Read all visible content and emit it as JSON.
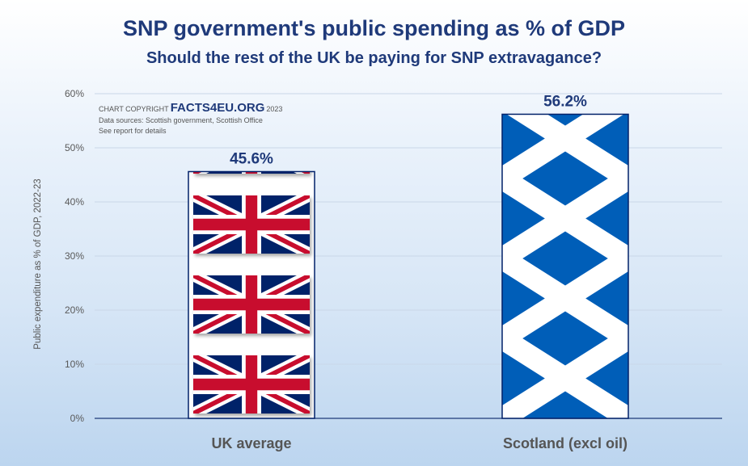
{
  "header": {
    "title": "SNP government's public spending as % of GDP",
    "subtitle": "Should the rest of the UK be paying for SNP extravagance?"
  },
  "credit": {
    "prefix": "CHART COPYRIGHT",
    "brand": "FACTS4EU.ORG",
    "year": "2023",
    "sources": "Data sources: Scottish government, Scottish Office",
    "note": "See report for details"
  },
  "chart_data": {
    "type": "bar",
    "categories": [
      "UK average",
      "Scotland (excl oil)"
    ],
    "values": [
      45.6,
      56.2
    ],
    "data_labels": [
      "45.6%",
      "56.2%"
    ],
    "ylabel": "Public expenditure as % of GDP, 2022-23",
    "ylim": [
      0,
      60
    ],
    "yticks": [
      "0%",
      "10%",
      "20%",
      "30%",
      "40%",
      "50%",
      "60%"
    ],
    "grid": true,
    "bar_fills": [
      "union-jack-flag",
      "saltire-flag"
    ],
    "colors": {
      "navy": "#012169",
      "red": "#C8102E",
      "saltire_blue": "#005EB8",
      "text_dark": "#1f3a7a",
      "category_text": "#555555"
    }
  }
}
